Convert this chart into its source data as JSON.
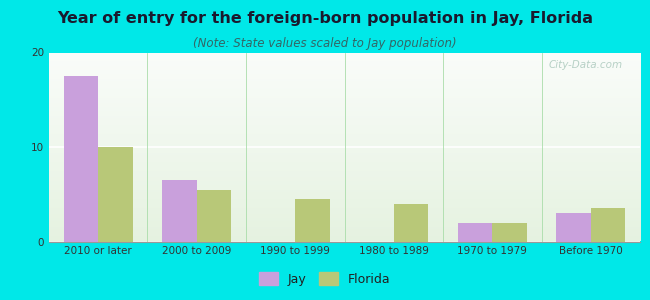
{
  "title": "Year of entry for the foreign-born population in Jay, Florida",
  "subtitle": "(Note: State values scaled to Jay population)",
  "categories": [
    "2010 or later",
    "2000 to 2009",
    "1990 to 1999",
    "1980 to 1989",
    "1970 to 1979",
    "Before 1970"
  ],
  "jay_values": [
    17.5,
    6.5,
    0,
    0,
    2.0,
    3.0
  ],
  "florida_values": [
    10.0,
    5.5,
    4.5,
    4.0,
    2.0,
    3.5
  ],
  "jay_color": "#c9a0dc",
  "florida_color": "#b8c878",
  "background_outer": "#00e8e8",
  "ylim": [
    0,
    20
  ],
  "yticks": [
    0,
    10,
    20
  ],
  "bar_width": 0.35,
  "title_fontsize": 11.5,
  "subtitle_fontsize": 8.5,
  "tick_fontsize": 7.5,
  "legend_fontsize": 9,
  "watermark_text": "City-Data.com",
  "watermark_color": "#b0ccc0"
}
